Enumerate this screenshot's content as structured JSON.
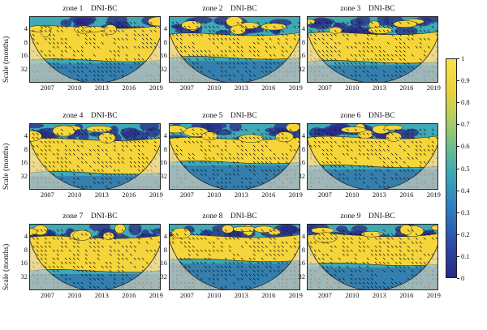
{
  "panels": [
    {
      "zone": "zone 1",
      "series": "DNI-BC"
    },
    {
      "zone": "zone 2",
      "series": "DNI-BC"
    },
    {
      "zone": "zone 3",
      "series": "DNI-BC"
    },
    {
      "zone": "zone 4",
      "series": "DNI-BC"
    },
    {
      "zone": "zone 5",
      "series": "DNI-BC"
    },
    {
      "zone": "zone 6",
      "series": "DNI-BC"
    },
    {
      "zone": "zone 7",
      "series": "DNI-BC"
    },
    {
      "zone": "zone 8",
      "series": "DNI-BC"
    },
    {
      "zone": "zone 9",
      "series": "DNI-BC"
    }
  ],
  "y_axis_label": "Scale (months)",
  "colors": {
    "high": "#f5d53a",
    "mid": "#3fa9b5",
    "low": "#2a2c86",
    "cone_shade": "#e8dcc0"
  },
  "chart_data": {
    "type": "heatmap",
    "subtype": "wavelet coherence",
    "panels": [
      "zone 1",
      "zone 2",
      "zone 3",
      "zone 4",
      "zone 5",
      "zone 6",
      "zone 7",
      "zone 8",
      "zone 9"
    ],
    "series_label": "DNI-BC",
    "x_ticks": [
      2007,
      2010,
      2013,
      2016,
      2019
    ],
    "x_range": [
      2005,
      2019.5
    ],
    "ylabel": "Scale (months)",
    "y_ticks": [
      4,
      8,
      16,
      32
    ],
    "y_scale": "log2",
    "y_range": [
      2,
      64
    ],
    "colorbar": {
      "ticks": [
        0,
        0.1,
        0.2,
        0.3,
        0.4,
        0.5,
        0.6,
        0.7,
        0.8,
        0.9,
        1
      ],
      "range": [
        0,
        1
      ],
      "colormap": "parula"
    }
  }
}
